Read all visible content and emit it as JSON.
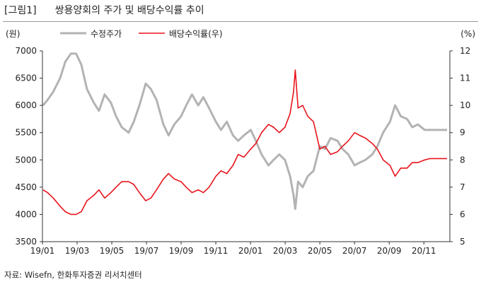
{
  "figure": {
    "label": "[그림1]",
    "title": "쌍용양회의 주가 및 배당수익률 추이",
    "source": "자료: Wisefn, 한화투자증권 리서치센터"
  },
  "chart_data": {
    "type": "line",
    "title": "쌍용양회의 주가 및 배당수익률 추이",
    "left_axis": {
      "unit": "(원)",
      "min": 3500,
      "max": 7000,
      "ticks": [
        3500,
        4000,
        4500,
        5000,
        5500,
        6000,
        6500,
        7000
      ]
    },
    "right_axis": {
      "unit": "(%)",
      "min": 5,
      "max": 12,
      "ticks": [
        5,
        6,
        7,
        8,
        9,
        10,
        11,
        12
      ]
    },
    "x_axis": {
      "ticks": [
        "19/01",
        "19/03",
        "19/05",
        "19/07",
        "19/09",
        "19/11",
        "20/01",
        "20/03",
        "20/05",
        "20/07",
        "20/09",
        "20/11"
      ]
    },
    "grid": false,
    "legend_position": "top",
    "series": [
      {
        "name": "수정주가",
        "axis": "left",
        "color": "#b3b3b3",
        "points": [
          [
            "2019-01-02",
            6000
          ],
          [
            "2019-01-10",
            6100
          ],
          [
            "2019-01-20",
            6250
          ],
          [
            "2019-02-01",
            6500
          ],
          [
            "2019-02-10",
            6800
          ],
          [
            "2019-02-20",
            6950
          ],
          [
            "2019-03-01",
            6950
          ],
          [
            "2019-03-10",
            6750
          ],
          [
            "2019-03-20",
            6300
          ],
          [
            "2019-04-01",
            6050
          ],
          [
            "2019-04-10",
            5900
          ],
          [
            "2019-04-20",
            6200
          ],
          [
            "2019-05-01",
            6050
          ],
          [
            "2019-05-10",
            5800
          ],
          [
            "2019-05-20",
            5600
          ],
          [
            "2019-06-01",
            5500
          ],
          [
            "2019-06-10",
            5700
          ],
          [
            "2019-06-20",
            6000
          ],
          [
            "2019-07-01",
            6400
          ],
          [
            "2019-07-10",
            6300
          ],
          [
            "2019-07-20",
            6100
          ],
          [
            "2019-08-01",
            5650
          ],
          [
            "2019-08-10",
            5450
          ],
          [
            "2019-08-20",
            5650
          ],
          [
            "2019-09-01",
            5800
          ],
          [
            "2019-09-10",
            6000
          ],
          [
            "2019-09-20",
            6200
          ],
          [
            "2019-10-01",
            6000
          ],
          [
            "2019-10-10",
            6150
          ],
          [
            "2019-10-20",
            5950
          ],
          [
            "2019-11-01",
            5700
          ],
          [
            "2019-11-10",
            5550
          ],
          [
            "2019-11-20",
            5700
          ],
          [
            "2019-12-01",
            5450
          ],
          [
            "2019-12-10",
            5350
          ],
          [
            "2019-12-20",
            5450
          ],
          [
            "2020-01-01",
            5550
          ],
          [
            "2020-01-10",
            5350
          ],
          [
            "2020-01-20",
            5100
          ],
          [
            "2020-02-01",
            4900
          ],
          [
            "2020-02-10",
            5000
          ],
          [
            "2020-02-20",
            5100
          ],
          [
            "2020-03-01",
            5000
          ],
          [
            "2020-03-10",
            4700
          ],
          [
            "2020-03-16",
            4350
          ],
          [
            "2020-03-19",
            4100
          ],
          [
            "2020-03-24",
            4600
          ],
          [
            "2020-04-01",
            4500
          ],
          [
            "2020-04-10",
            4700
          ],
          [
            "2020-04-20",
            4800
          ],
          [
            "2020-05-01",
            5250
          ],
          [
            "2020-05-10",
            5200
          ],
          [
            "2020-05-20",
            5400
          ],
          [
            "2020-06-01",
            5350
          ],
          [
            "2020-06-10",
            5200
          ],
          [
            "2020-06-20",
            5100
          ],
          [
            "2020-07-01",
            4900
          ],
          [
            "2020-07-10",
            4950
          ],
          [
            "2020-07-20",
            5000
          ],
          [
            "2020-08-01",
            5100
          ],
          [
            "2020-08-10",
            5250
          ],
          [
            "2020-08-20",
            5500
          ],
          [
            "2020-09-01",
            5700
          ],
          [
            "2020-09-10",
            6000
          ],
          [
            "2020-09-20",
            5800
          ],
          [
            "2020-10-01",
            5750
          ],
          [
            "2020-10-10",
            5600
          ],
          [
            "2020-10-20",
            5650
          ],
          [
            "2020-11-01",
            5550
          ],
          [
            "2020-11-10",
            5550
          ],
          [
            "2020-11-20",
            5550
          ],
          [
            "2020-12-01",
            5550
          ],
          [
            "2020-12-10",
            5550
          ]
        ]
      },
      {
        "name": "배당수익률(우)",
        "axis": "right",
        "color": "#e8141c",
        "points": [
          [
            "2019-01-02",
            6.9
          ],
          [
            "2019-01-10",
            6.8
          ],
          [
            "2019-01-20",
            6.6
          ],
          [
            "2019-02-01",
            6.3
          ],
          [
            "2019-02-10",
            6.1
          ],
          [
            "2019-02-20",
            6.0
          ],
          [
            "2019-03-01",
            6.0
          ],
          [
            "2019-03-10",
            6.1
          ],
          [
            "2019-03-20",
            6.5
          ],
          [
            "2019-04-01",
            6.7
          ],
          [
            "2019-04-10",
            6.9
          ],
          [
            "2019-04-20",
            6.6
          ],
          [
            "2019-05-01",
            6.8
          ],
          [
            "2019-05-10",
            7.0
          ],
          [
            "2019-05-20",
            7.2
          ],
          [
            "2019-06-01",
            7.2
          ],
          [
            "2019-06-10",
            7.1
          ],
          [
            "2019-06-20",
            6.8
          ],
          [
            "2019-07-01",
            6.5
          ],
          [
            "2019-07-10",
            6.6
          ],
          [
            "2019-07-20",
            6.9
          ],
          [
            "2019-08-01",
            7.3
          ],
          [
            "2019-08-10",
            7.5
          ],
          [
            "2019-08-20",
            7.3
          ],
          [
            "2019-09-01",
            7.2
          ],
          [
            "2019-09-10",
            7.0
          ],
          [
            "2019-09-20",
            6.8
          ],
          [
            "2019-10-01",
            6.9
          ],
          [
            "2019-10-10",
            6.8
          ],
          [
            "2019-10-20",
            7.0
          ],
          [
            "2019-11-01",
            7.4
          ],
          [
            "2019-11-10",
            7.6
          ],
          [
            "2019-11-20",
            7.5
          ],
          [
            "2019-12-01",
            7.8
          ],
          [
            "2019-12-10",
            8.2
          ],
          [
            "2019-12-20",
            8.1
          ],
          [
            "2020-01-01",
            8.4
          ],
          [
            "2020-01-10",
            8.6
          ],
          [
            "2020-01-20",
            9.0
          ],
          [
            "2020-02-01",
            9.3
          ],
          [
            "2020-02-10",
            9.2
          ],
          [
            "2020-02-20",
            9.0
          ],
          [
            "2020-03-01",
            9.2
          ],
          [
            "2020-03-10",
            9.7
          ],
          [
            "2020-03-16",
            10.5
          ],
          [
            "2020-03-19",
            11.3
          ],
          [
            "2020-03-24",
            9.9
          ],
          [
            "2020-04-01",
            10.0
          ],
          [
            "2020-04-10",
            9.6
          ],
          [
            "2020-04-20",
            9.4
          ],
          [
            "2020-05-01",
            8.4
          ],
          [
            "2020-05-10",
            8.5
          ],
          [
            "2020-05-20",
            8.2
          ],
          [
            "2020-06-01",
            8.3
          ],
          [
            "2020-06-10",
            8.5
          ],
          [
            "2020-06-20",
            8.7
          ],
          [
            "2020-07-01",
            9.0
          ],
          [
            "2020-07-10",
            8.9
          ],
          [
            "2020-07-20",
            8.8
          ],
          [
            "2020-08-01",
            8.6
          ],
          [
            "2020-08-10",
            8.4
          ],
          [
            "2020-08-20",
            8.0
          ],
          [
            "2020-09-01",
            7.8
          ],
          [
            "2020-09-10",
            7.4
          ],
          [
            "2020-09-20",
            7.7
          ],
          [
            "2020-10-01",
            7.7
          ],
          [
            "2020-10-10",
            7.9
          ],
          [
            "2020-10-20",
            7.9
          ],
          [
            "2020-11-01",
            8.0
          ],
          [
            "2020-11-10",
            8.05
          ],
          [
            "2020-11-20",
            8.05
          ],
          [
            "2020-12-01",
            8.05
          ],
          [
            "2020-12-10",
            8.05
          ]
        ]
      }
    ]
  }
}
